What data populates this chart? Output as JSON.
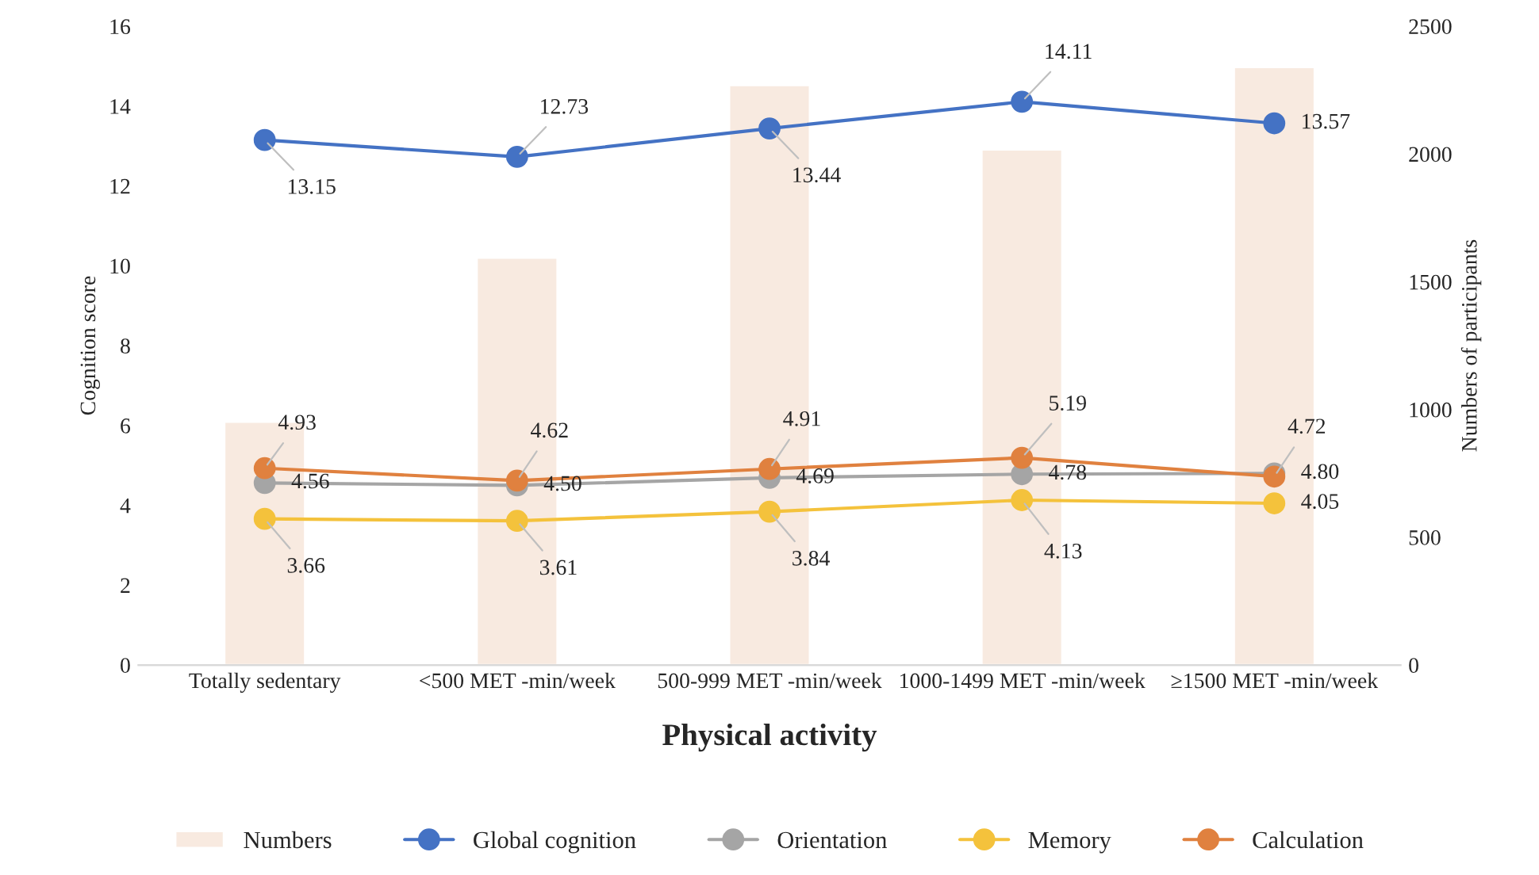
{
  "chart_data": {
    "type": "line",
    "categories": [
      "Totally sedentary",
      "<500 MET -min/week",
      "500-999 MET -min/week",
      "1000-1499 MET -min/week",
      "≥1500 MET -min/week"
    ],
    "xlabel": "Physical activity",
    "ylabel": "Cognition score",
    "y2label": "Numbers of participants",
    "ylim": [
      0,
      16
    ],
    "yticks": [
      0,
      2,
      4,
      6,
      8,
      10,
      12,
      14,
      16
    ],
    "y2lim": [
      0,
      2500
    ],
    "y2ticks": [
      0,
      500,
      1000,
      1500,
      2000,
      2500
    ],
    "marker": "circle",
    "legend": "bottom",
    "series": [
      {
        "name": "Numbers",
        "type": "bar",
        "axis": "y2",
        "color": "#f8eae0",
        "values": [
          952,
          1594,
          2270,
          2018,
          2340
        ]
      },
      {
        "name": "Global cognition",
        "color": "#4472c4",
        "values": [
          13.15,
          12.73,
          13.44,
          14.11,
          13.57
        ],
        "value_labels": [
          "13.15",
          "12.73",
          "13.44",
          "14.11",
          "13.57"
        ]
      },
      {
        "name": "Orientation",
        "color": "#a5a5a5",
        "values": [
          4.56,
          4.5,
          4.69,
          4.78,
          4.8
        ],
        "value_labels": [
          "4.56",
          "4.50",
          "4.69",
          "4.78",
          "4.80"
        ]
      },
      {
        "name": "Memory",
        "color": "#f4c23c",
        "values": [
          3.66,
          3.61,
          3.84,
          4.13,
          4.05
        ],
        "value_labels": [
          "3.66",
          "3.61",
          "3.84",
          "4.13",
          "4.05"
        ]
      },
      {
        "name": "Calculation",
        "color": "#e0813f",
        "values": [
          4.93,
          4.62,
          4.91,
          5.19,
          4.72
        ],
        "value_labels": [
          "4.93",
          "4.62",
          "4.91",
          "5.19",
          "4.72"
        ]
      }
    ]
  }
}
